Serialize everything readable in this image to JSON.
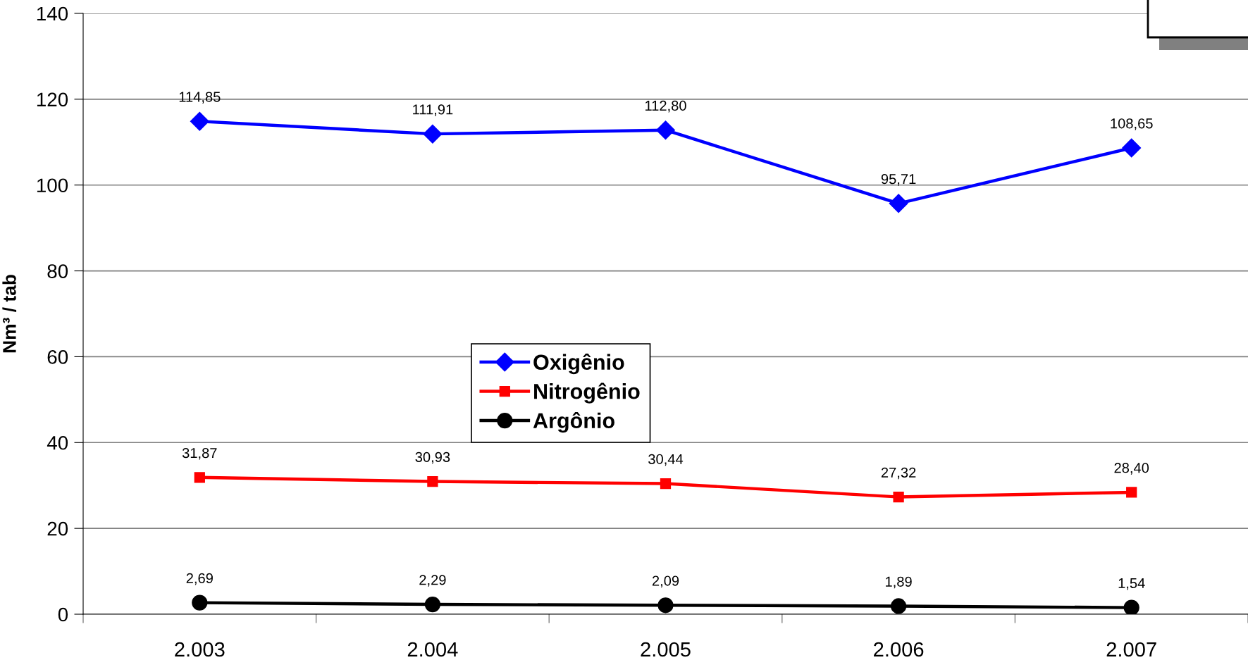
{
  "chart_data": {
    "type": "line",
    "ylabel": "Nm³ / tab",
    "categories": [
      "2.003",
      "2.004",
      "2.005",
      "2.006",
      "2.007"
    ],
    "series": [
      {
        "name": "Oxigênio",
        "color": "#0000ff",
        "marker": "diamond",
        "values": [
          114.85,
          111.91,
          112.8,
          95.71,
          108.65
        ],
        "value_labels": [
          "114,85",
          "111,91",
          "112,80",
          "95,71",
          "108,65"
        ]
      },
      {
        "name": "Nitrogênio",
        "color": "#ff0000",
        "marker": "square",
        "values": [
          31.87,
          30.93,
          30.44,
          27.32,
          28.4
        ],
        "value_labels": [
          "31,87",
          "30,93",
          "30,44",
          "27,32",
          "28,40"
        ]
      },
      {
        "name": "Argônio",
        "color": "#000000",
        "marker": "circle",
        "values": [
          2.69,
          2.29,
          2.09,
          1.89,
          1.54
        ],
        "value_labels": [
          "2,69",
          "2,29",
          "2,09",
          "1,89",
          "1,54"
        ]
      }
    ],
    "ylim": [
      0,
      140
    ],
    "yticks": [
      0,
      20,
      40,
      60,
      80,
      100,
      120,
      140
    ],
    "grid": "y",
    "legend": "center",
    "line_style": "solid"
  }
}
